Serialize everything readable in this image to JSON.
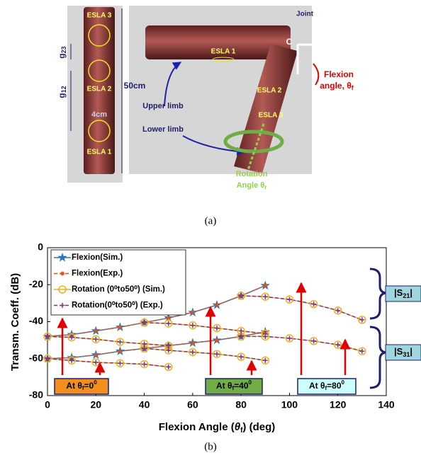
{
  "panel_a": {
    "caption": "(a)",
    "esla3": "ESLA 3",
    "esla2": "ESLA 2",
    "esla1": "ESLA 1",
    "g23": {
      "text": "g",
      "sub": "23"
    },
    "g12": {
      "text": "g",
      "sub": "12"
    },
    "width": "4cm",
    "length": "50cm",
    "right_esla1": "ESLA 1",
    "joint": "Joint",
    "c": "C",
    "flexion": {
      "line1": "Flexion",
      "line2": "angle, θ",
      "sub": "f"
    },
    "right_esla2": "ESLA 2",
    "right_esla3": "ESLA 3",
    "upper": "Upper limb",
    "lower": "Lower limb",
    "rotation": {
      "line1": "Rotation",
      "line2": "Angle θ",
      "sub": "r"
    }
  },
  "chart_data": {
    "type": "line",
    "caption": "(b)",
    "xlabel": {
      "text": "Flexion Angle (",
      "symbol": "θ",
      "sub": "f",
      "rest": ") (deg)"
    },
    "ylabel": "Transm. Coeff. (dB)",
    "xlim": [
      0,
      140
    ],
    "ylim": [
      -80,
      0
    ],
    "xticks": [
      0,
      20,
      40,
      60,
      80,
      100,
      120,
      140
    ],
    "yticks": [
      -80,
      -60,
      -40,
      -20,
      0
    ],
    "series": [
      {
        "name": "Flexion(Sim.)",
        "color": "#2e75b6",
        "marker": "star",
        "x": [
          0,
          10,
          20,
          30,
          40,
          50,
          60,
          70,
          80,
          90,
          null,
          0,
          10,
          20,
          30,
          40,
          50,
          60,
          70,
          80,
          90
        ],
        "values": [
          -48,
          -47,
          -45,
          -43,
          -40.5,
          -38,
          -35,
          -31,
          -26,
          -20.5,
          null,
          -60,
          -59.5,
          -58,
          -56,
          -54.5,
          -53,
          -51.5,
          -50,
          -48,
          -45.5
        ]
      },
      {
        "name": "Flexion(Exp.)",
        "color": "#d9541e",
        "marker": "asterisk",
        "x": [
          0,
          10,
          20,
          30,
          40,
          50,
          60,
          70,
          80,
          90,
          null,
          0,
          10,
          20,
          30,
          40,
          50,
          60,
          70,
          80,
          90
        ],
        "values": [
          -48,
          -47,
          -45,
          -43,
          -40.5,
          -38,
          -35,
          -31,
          -26,
          -20.5,
          null,
          -60,
          -59.5,
          -58,
          -56,
          -54.5,
          -53,
          -51.5,
          -50,
          -48,
          -45.5
        ]
      },
      {
        "name": "Rotation (0⁰to50⁰) (Sim.)",
        "color": "#edb120",
        "marker": "circle",
        "x": [
          0,
          10,
          20,
          30,
          40,
          50,
          null,
          40,
          50,
          60,
          70,
          80,
          90,
          null,
          80,
          90,
          100,
          110,
          120,
          130,
          null,
          0,
          10,
          20,
          30,
          40,
          50,
          null,
          40,
          50,
          60,
          70,
          80,
          90,
          null,
          80,
          90,
          100,
          110,
          120,
          130
        ],
        "values": [
          -48,
          -48.5,
          -49.5,
          -51,
          -52,
          -53,
          null,
          -40.5,
          -41,
          -42,
          -43.5,
          -45,
          -46.5,
          null,
          -26,
          -26.5,
          -28,
          -30.5,
          -34,
          -39,
          null,
          -60,
          -61,
          -62,
          -62.5,
          -63,
          -64.5,
          null,
          -54.5,
          -55.5,
          -56.5,
          -57.5,
          -59,
          -61,
          null,
          -48,
          -48,
          -49,
          -50.5,
          -52.5,
          -56
        ]
      },
      {
        "name": "Rotation(0⁰to50⁰) (Exp.)",
        "color": "#7e2f8e",
        "marker": "plus",
        "x": [
          0,
          10,
          20,
          30,
          40,
          50,
          null,
          40,
          50,
          60,
          70,
          80,
          90,
          null,
          80,
          90,
          100,
          110,
          120,
          130,
          null,
          0,
          10,
          20,
          30,
          40,
          50,
          null,
          40,
          50,
          60,
          70,
          80,
          90,
          null,
          80,
          90,
          100,
          110,
          120,
          130
        ],
        "values": [
          -48,
          -48.5,
          -49.5,
          -51,
          -52,
          -53,
          null,
          -40.5,
          -41,
          -42,
          -43.5,
          -45,
          -46.5,
          null,
          -26,
          -26.5,
          -28,
          -30.5,
          -34,
          -39,
          null,
          -60,
          -61,
          -62,
          -62.5,
          -63,
          -64.5,
          null,
          -54.5,
          -55.5,
          -56.5,
          -57.5,
          -59,
          -61,
          null,
          -48,
          -48,
          -49,
          -50.5,
          -52.5,
          -56
        ]
      }
    ],
    "annotations": [
      {
        "text": "At θ",
        "sub": "f",
        "rest": "=0",
        "sup": "0"
      },
      {
        "text": "At θ",
        "sub": "f",
        "rest": "=40",
        "sup": "0"
      },
      {
        "text": "At θ",
        "sub": "f",
        "rest": "=80",
        "sup": "0"
      }
    ],
    "s21": {
      "text": "|S",
      "sub": "21",
      "rest": "|"
    },
    "s31": {
      "text": "|S",
      "sub": "31",
      "rest": "|"
    }
  }
}
